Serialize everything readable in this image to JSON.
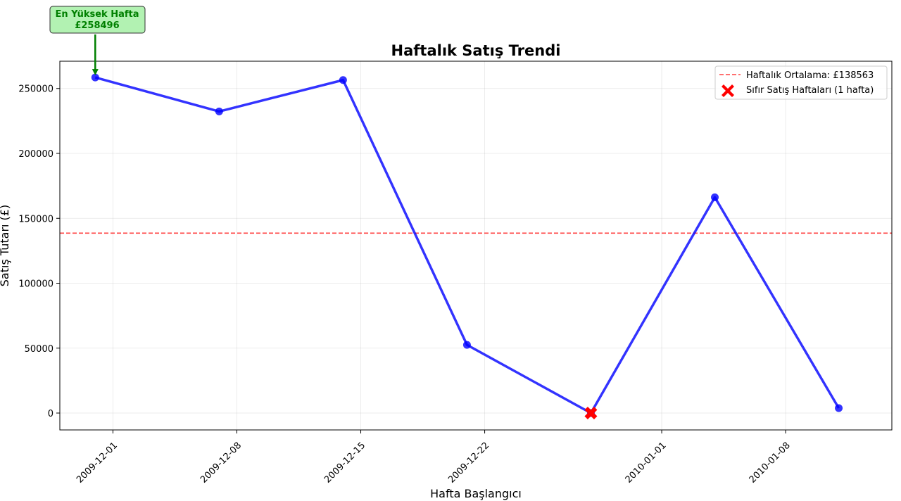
{
  "chart_data": {
    "type": "line",
    "title": "Haftalık Satış Trendi",
    "xlabel": "Hafta Başlangıcı",
    "ylabel": "Satış Tutarı (£)",
    "x": [
      "2009-11-30",
      "2009-12-07",
      "2009-12-14",
      "2009-12-21",
      "2009-12-28",
      "2010-01-04",
      "2010-01-11"
    ],
    "series": [
      {
        "name": "",
        "values": [
          258496,
          232300,
          256500,
          52500,
          0,
          166200,
          3800
        ],
        "color": "#0000ff"
      }
    ],
    "xlim": [
      "2009-11-28",
      "2010-01-14"
    ],
    "ylim": [
      -13000,
      271000
    ],
    "xticks": [
      "2009-12-01",
      "2009-12-08",
      "2009-12-15",
      "2009-12-22",
      "2010-01-01",
      "2010-01-08"
    ],
    "yticks": [
      0,
      50000,
      100000,
      150000,
      200000,
      250000
    ],
    "grid": true,
    "reference_line": {
      "label": "Haftalık Ortalama: £138563",
      "value": 138563,
      "color": "#ff0000",
      "style": "dashed"
    },
    "zero_weeks": {
      "label": "Sıfır Satış Haftaları (1 hafta)",
      "x": [
        "2009-12-28"
      ],
      "values": [
        0
      ],
      "color": "#ff0000",
      "marker": "X"
    },
    "annotation": {
      "line1": "En Yüksek Hafta",
      "line2": "£258496",
      "x": "2009-11-30",
      "value": 258496,
      "text_color": "#008000",
      "box_color": "#b2f2b2"
    },
    "legend_position": "top-right"
  }
}
